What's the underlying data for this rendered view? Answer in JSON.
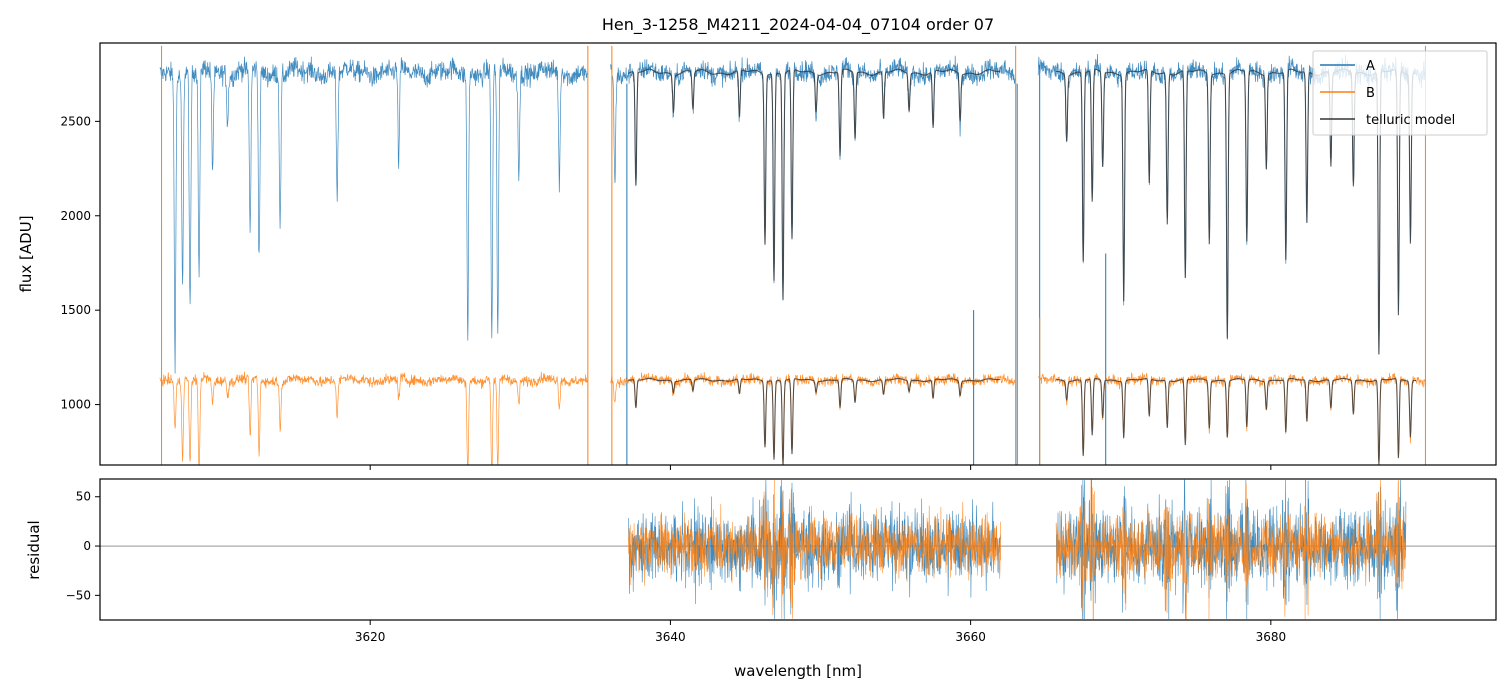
{
  "chart_data": [
    {
      "type": "line",
      "panel": "top",
      "title": "Hen_3-1258_M4211_2024-04-04_07104  order 07",
      "xlabel": "",
      "ylabel": "flux [ADU]",
      "xlim": [
        3602,
        3695
      ],
      "ylim": [
        680,
        2915
      ],
      "yticks": [
        1000,
        1500,
        2000,
        2500
      ],
      "xticks": [
        3620,
        3640,
        3660,
        3680
      ],
      "legend": {
        "position": "top-right",
        "entries": [
          "A",
          "B",
          "telluric model"
        ]
      },
      "series": [
        {
          "name": "A",
          "color": "#1f77b4",
          "continuum": 2760,
          "segments": [
            [
              3606.0,
              3634.5
            ],
            [
              3636.0,
              3663.0
            ],
            [
              3664.5,
              3690.3
            ]
          ],
          "lines": [
            [
              3607.0,
              1500
            ],
            [
              3607.5,
              1150
            ],
            [
              3608.0,
              1300
            ],
            [
              3608.6,
              1100
            ],
            [
              3609.5,
              500
            ],
            [
              3610.5,
              250
            ],
            [
              3612.0,
              850
            ],
            [
              3612.6,
              1000
            ],
            [
              3614.0,
              800
            ],
            [
              3617.8,
              650
            ],
            [
              3621.9,
              500
            ],
            [
              3626.5,
              1400
            ],
            [
              3628.1,
              1450
            ],
            [
              3628.5,
              1400
            ],
            [
              3629.9,
              500
            ],
            [
              3632.6,
              600
            ],
            [
              3636.3,
              600
            ],
            [
              3637.7,
              600
            ],
            [
              3640.2,
              200
            ],
            [
              3641.5,
              200
            ],
            [
              3644.6,
              250
            ],
            [
              3646.3,
              900
            ],
            [
              3646.9,
              1100
            ],
            [
              3647.5,
              1200
            ],
            [
              3648.1,
              900
            ],
            [
              3649.7,
              200
            ],
            [
              3651.3,
              450
            ],
            [
              3652.3,
              350
            ],
            [
              3654.2,
              250
            ],
            [
              3655.9,
              200
            ],
            [
              3657.5,
              300
            ],
            [
              3659.3,
              250
            ],
            [
              3666.4,
              350
            ],
            [
              3667.5,
              1000
            ],
            [
              3668.1,
              700
            ],
            [
              3668.8,
              500
            ],
            [
              3670.2,
              1200
            ],
            [
              3671.9,
              600
            ],
            [
              3673.1,
              800
            ],
            [
              3674.3,
              1100
            ],
            [
              3675.9,
              900
            ],
            [
              3677.1,
              1400
            ],
            [
              3678.4,
              900
            ],
            [
              3679.7,
              500
            ],
            [
              3681.0,
              1000
            ],
            [
              3682.4,
              800
            ],
            [
              3684.0,
              500
            ],
            [
              3685.5,
              600
            ],
            [
              3687.2,
              1500
            ],
            [
              3688.5,
              1300
            ],
            [
              3689.3,
              900
            ]
          ],
          "spikes": [
            [
              3634.4,
              600
            ],
            [
              3637.1,
              2700
            ],
            [
              3660.2,
              1500
            ],
            [
              3663.1,
              2700
            ],
            [
              3664.6,
              2800
            ],
            [
              3669.0,
              1800
            ]
          ]
        },
        {
          "name": "B",
          "color": "#ff7f0e",
          "continuum": 1130,
          "segments": [
            [
              3606.0,
              3634.5
            ],
            [
              3636.0,
              3663.0
            ],
            [
              3664.5,
              3690.3
            ]
          ],
          "lines": [
            [
              3607.0,
              250
            ],
            [
              3607.5,
              400
            ],
            [
              3608.0,
              450
            ],
            [
              3608.6,
              500
            ],
            [
              3609.5,
              120
            ],
            [
              3610.5,
              80
            ],
            [
              3612.0,
              300
            ],
            [
              3612.6,
              400
            ],
            [
              3614.0,
              250
            ],
            [
              3617.8,
              200
            ],
            [
              3621.9,
              120
            ],
            [
              3626.5,
              480
            ],
            [
              3628.1,
              500
            ],
            [
              3628.5,
              480
            ],
            [
              3629.9,
              120
            ],
            [
              3632.6,
              150
            ],
            [
              3636.3,
              120
            ],
            [
              3637.7,
              150
            ],
            [
              3640.2,
              60
            ],
            [
              3641.5,
              60
            ],
            [
              3644.6,
              80
            ],
            [
              3646.3,
              350
            ],
            [
              3646.9,
              420
            ],
            [
              3647.5,
              450
            ],
            [
              3648.1,
              400
            ],
            [
              3649.7,
              60
            ],
            [
              3651.3,
              150
            ],
            [
              3652.3,
              120
            ],
            [
              3654.2,
              80
            ],
            [
              3655.9,
              60
            ],
            [
              3657.5,
              100
            ],
            [
              3659.3,
              80
            ],
            [
              3666.4,
              100
            ],
            [
              3667.5,
              400
            ],
            [
              3668.1,
              300
            ],
            [
              3668.8,
              200
            ],
            [
              3670.2,
              300
            ],
            [
              3671.9,
              200
            ],
            [
              3673.1,
              250
            ],
            [
              3674.3,
              350
            ],
            [
              3675.9,
              250
            ],
            [
              3677.1,
              300
            ],
            [
              3678.4,
              250
            ],
            [
              3679.7,
              150
            ],
            [
              3681.0,
              280
            ],
            [
              3682.4,
              220
            ],
            [
              3684.0,
              150
            ],
            [
              3685.5,
              180
            ],
            [
              3687.2,
              450
            ],
            [
              3688.5,
              420
            ],
            [
              3689.3,
              300
            ]
          ],
          "spikes": [
            [
              3606.1,
              2900
            ],
            [
              3634.5,
              2900
            ],
            [
              3636.1,
              2900
            ],
            [
              3663.0,
              2900
            ],
            [
              3664.6,
              1460
            ],
            [
              3690.3,
              2900
            ]
          ]
        },
        {
          "name": "telluric model",
          "color": "#333333",
          "segments": [
            [
              3637.2,
              3662.0
            ],
            [
              3665.7,
              3689.7
            ]
          ],
          "note_scales": [
            2760,
            1130
          ]
        }
      ]
    },
    {
      "type": "line",
      "panel": "bottom",
      "title": "",
      "xlabel": "wavelength [nm]",
      "ylabel": "residual",
      "xlim": [
        3602,
        3695
      ],
      "ylim": [
        -75,
        68
      ],
      "yticks": [
        -50,
        0,
        50
      ],
      "xticks": [
        3620,
        3640,
        3660,
        3680
      ],
      "zero_line": true,
      "series": [
        {
          "name": "A",
          "color": "#1f77b4",
          "segments": [
            [
              3637.2,
              3662.0
            ],
            [
              3665.7,
              3689.0
            ]
          ],
          "sigma": 22
        },
        {
          "name": "B",
          "color": "#ff7f0e",
          "segments": [
            [
              3637.2,
              3662.0
            ],
            [
              3665.7,
              3689.0
            ]
          ],
          "sigma": 17
        }
      ]
    }
  ]
}
